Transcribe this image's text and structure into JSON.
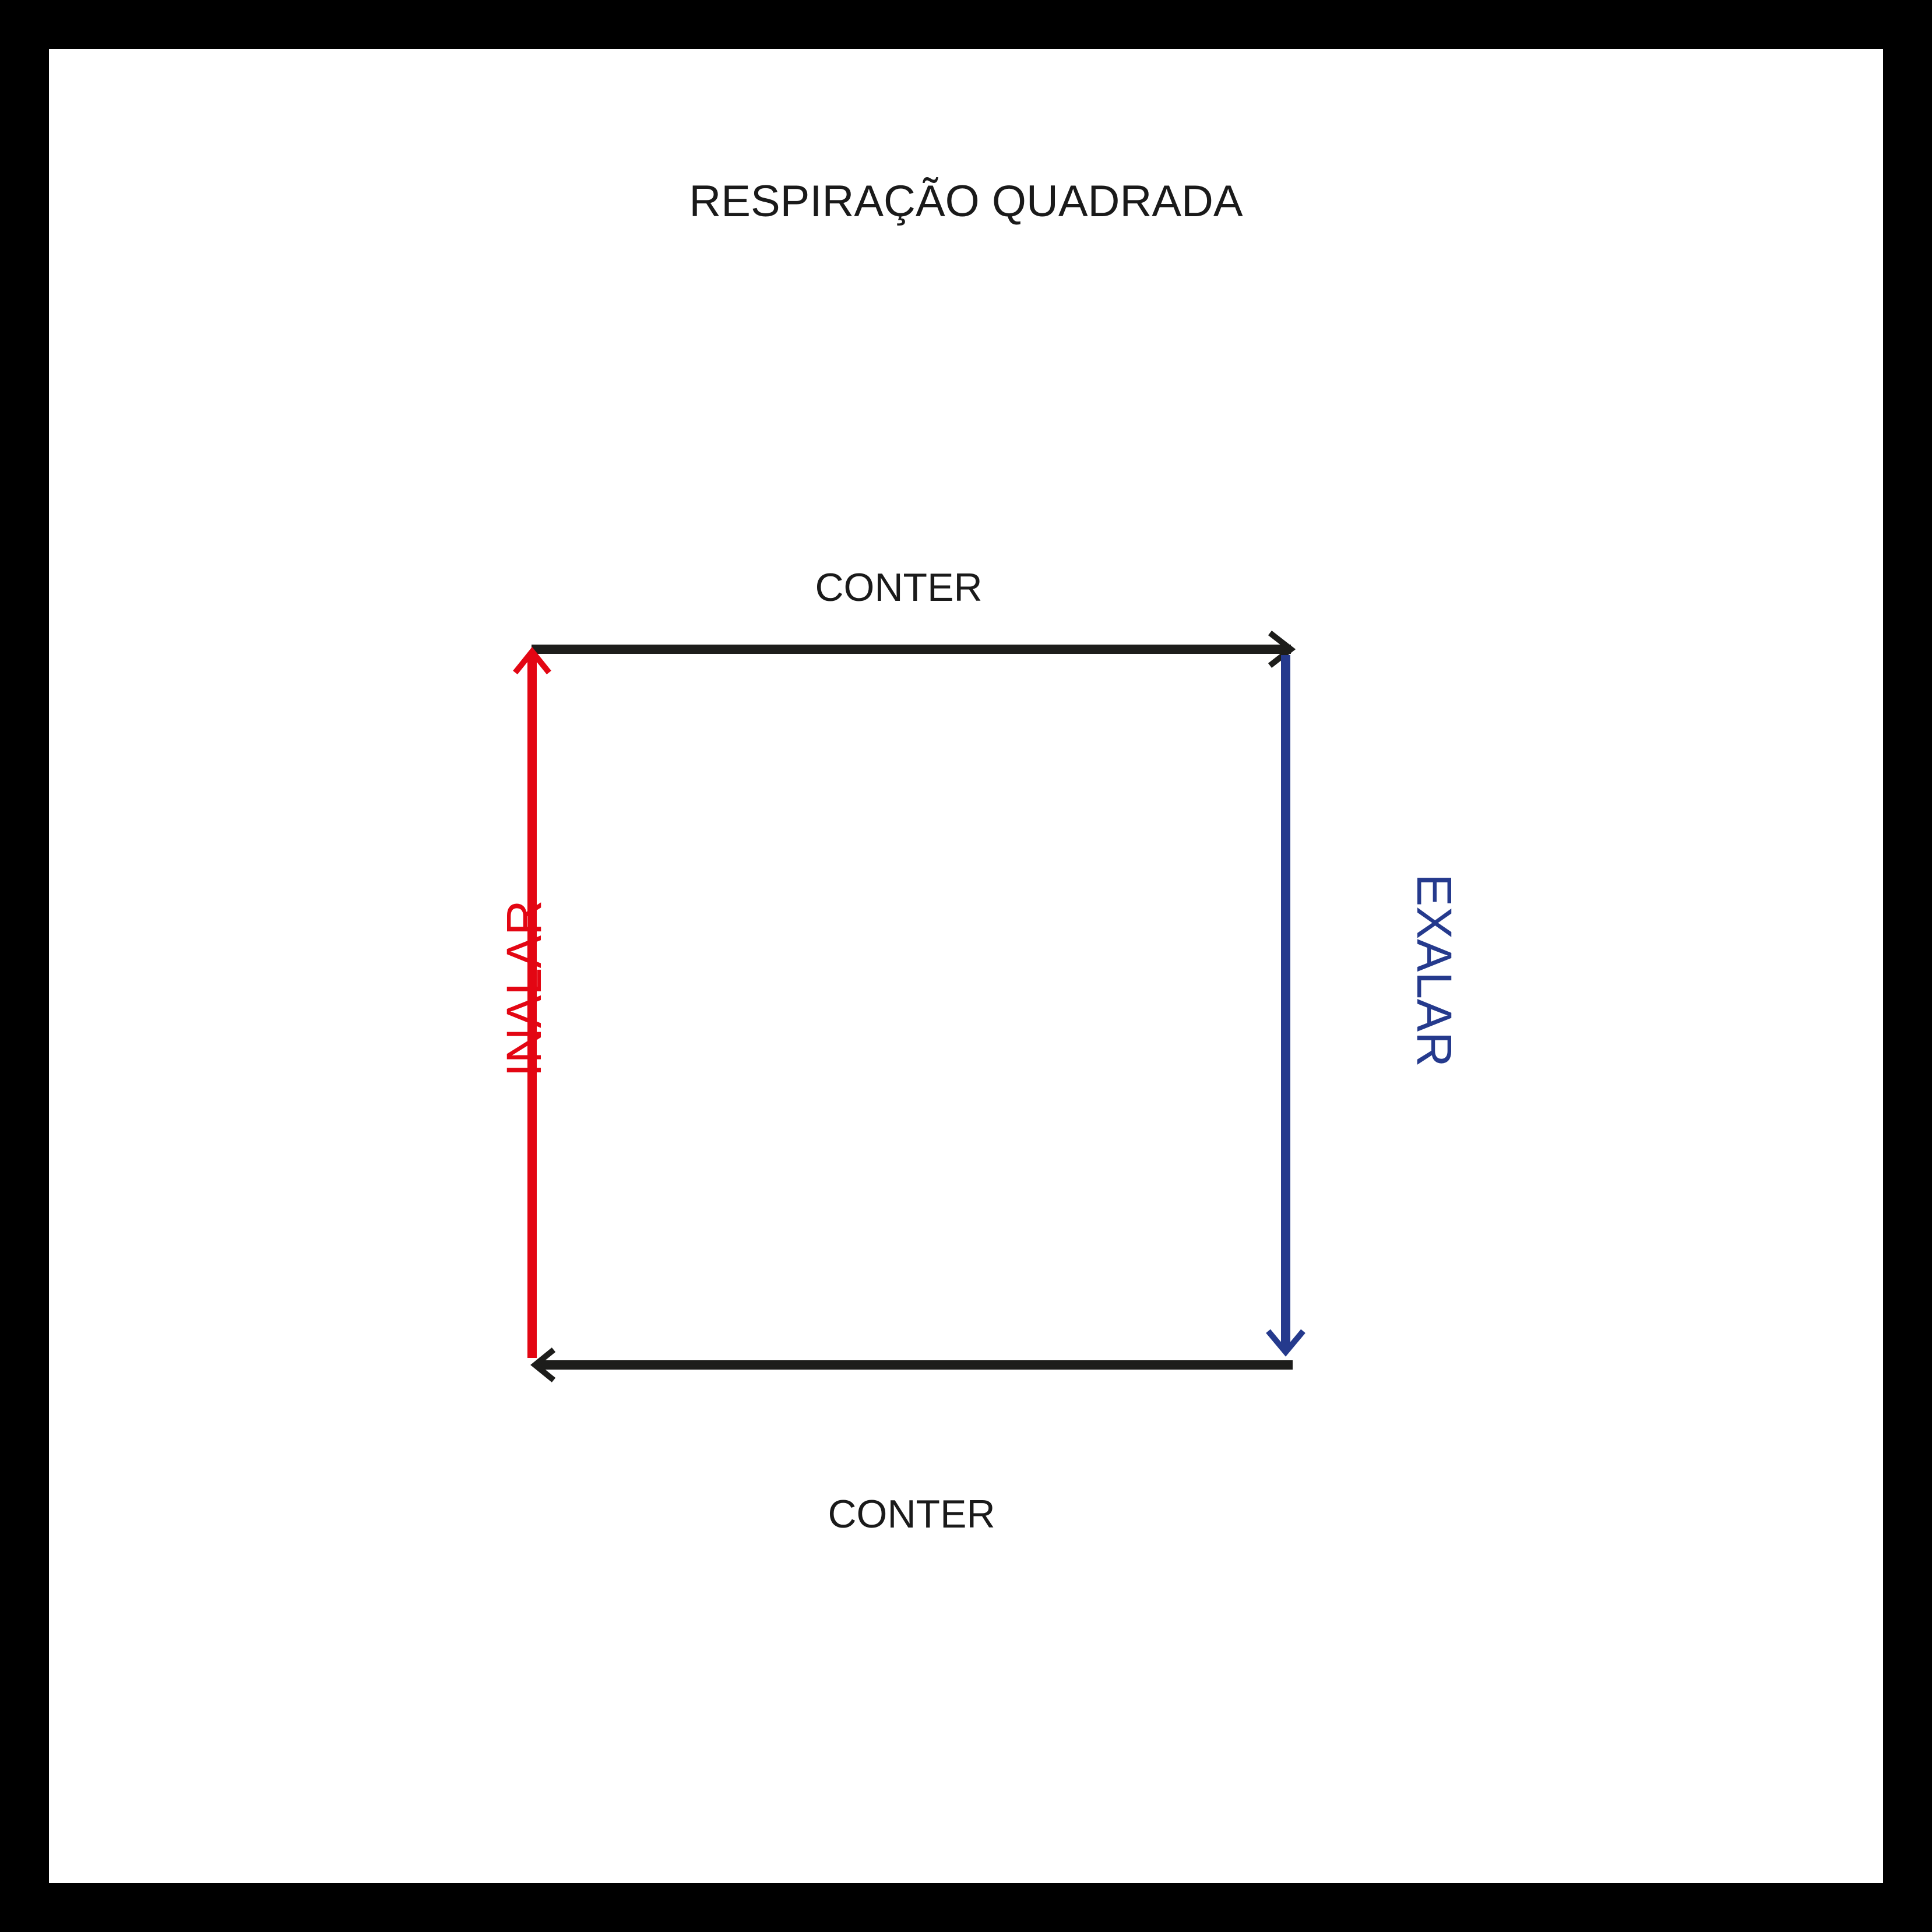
{
  "title": "RESPIRAÇÃO QUADRADA",
  "edges": {
    "top": {
      "label": "CONTER",
      "color": "#1d1d1b"
    },
    "right": {
      "label": "EXALAR",
      "color": "#253a8d"
    },
    "bottom": {
      "label": "CONTER",
      "color": "#1d1d1b"
    },
    "left": {
      "label": "INALAR",
      "color": "#e30613"
    }
  },
  "frame_color": "#000000",
  "background_color": "#ffffff"
}
